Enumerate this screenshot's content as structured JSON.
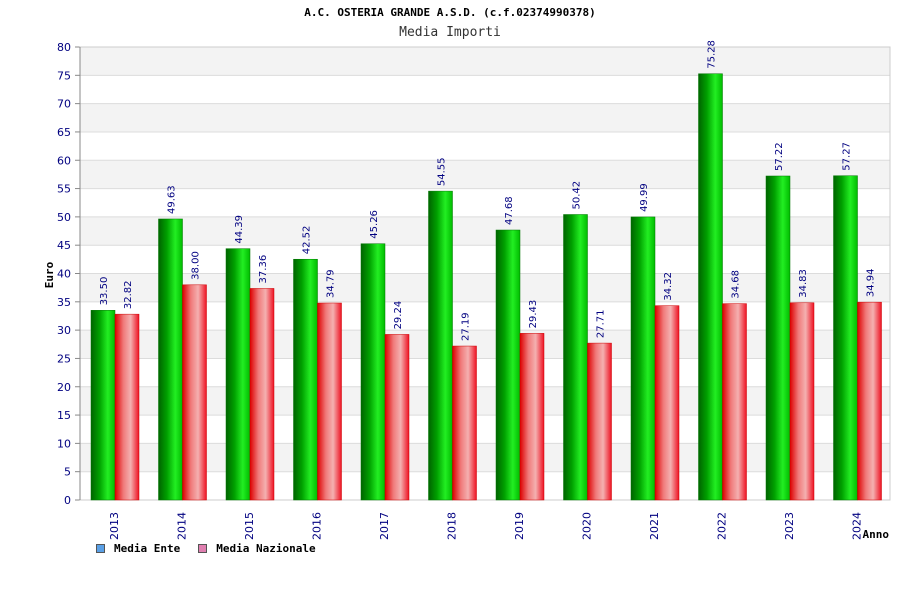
{
  "title": "A.C. OSTERIA GRANDE A.S.D. (c.f.02374990378)",
  "subtitle": "Media Importi",
  "legend": {
    "items": [
      {
        "label": "Media Ente",
        "color": "#5aa0e6"
      },
      {
        "label": "Media Nazionale",
        "color": "#e07fb0"
      }
    ]
  },
  "chart_data": {
    "type": "bar",
    "title": "A.C. OSTERIA GRANDE A.S.D. (c.f.02374990378)",
    "subtitle": "Media Importi",
    "xlabel": "Anno",
    "ylabel": "Euro",
    "ylim": [
      0,
      80
    ],
    "ytick_step": 5,
    "grid": true,
    "legend_position": "bottom-left",
    "categories": [
      "2013",
      "2014",
      "2015",
      "2016",
      "2017",
      "2018",
      "2019",
      "2020",
      "2021",
      "2022",
      "2023",
      "2024"
    ],
    "series": [
      {
        "name": "Media Ente",
        "color": "#00bb00",
        "values": [
          33.5,
          49.63,
          44.39,
          42.52,
          45.26,
          54.55,
          47.68,
          50.42,
          49.99,
          75.28,
          57.22,
          57.27
        ],
        "labels": [
          "33.50",
          "49.63",
          "44.39",
          "42.52",
          "45.26",
          "54.55",
          "47.68",
          "50.42",
          "49.99",
          "75.28",
          "57.22",
          "57.27"
        ]
      },
      {
        "name": "Media Nazionale",
        "color": "#ee1122",
        "values": [
          32.82,
          38.0,
          37.36,
          34.79,
          29.24,
          27.19,
          29.43,
          27.71,
          34.32,
          34.68,
          34.83,
          34.94
        ],
        "labels": [
          "32.82",
          "38.00",
          "37.36",
          "34.79",
          "29.24",
          "27.19",
          "29.43",
          "27.71",
          "34.32",
          "34.68",
          "34.83",
          "34.94"
        ]
      }
    ]
  }
}
